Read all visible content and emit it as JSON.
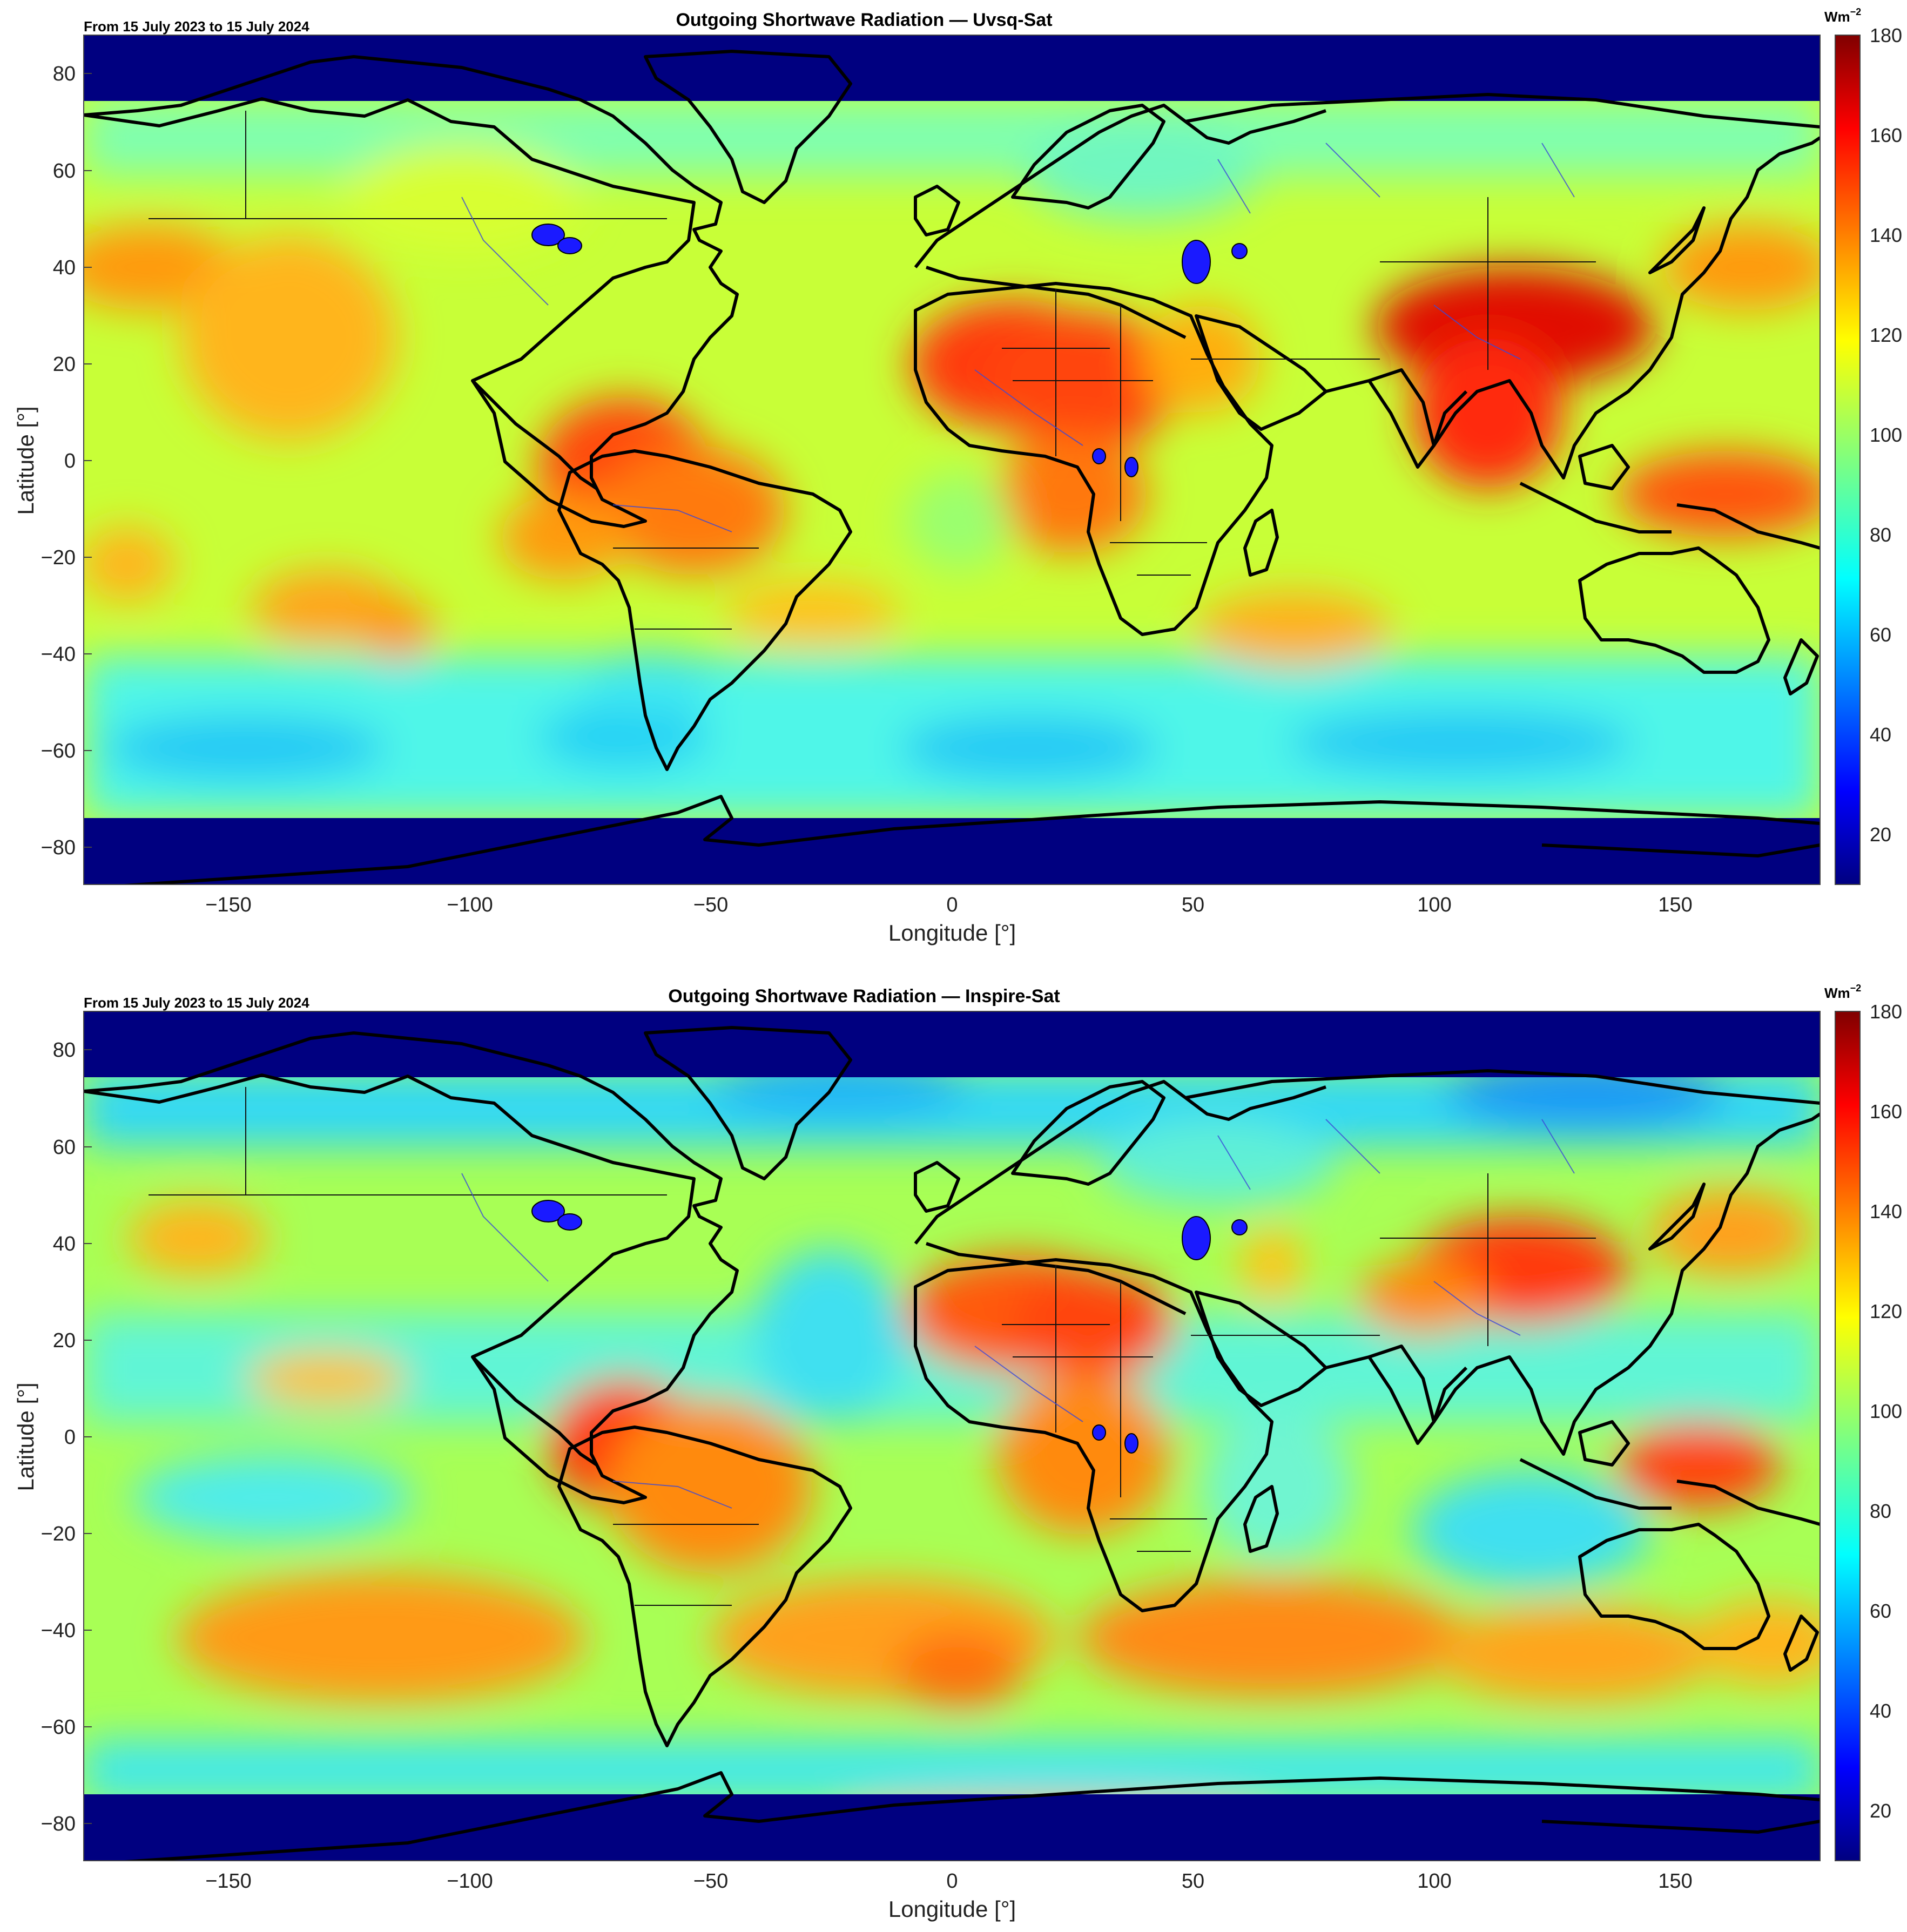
{
  "colormap": "jet",
  "colors": {
    "polar_mask": "#000080",
    "coastline": "#000000",
    "rivers": "#3b48d8",
    "lakes": "#1a1aff"
  },
  "colorbar": {
    "unit_base": "Wm",
    "unit_exp": "−2",
    "range": [
      10,
      180
    ],
    "ticks": [
      "20",
      "40",
      "60",
      "80",
      "100",
      "120",
      "140",
      "160",
      "180"
    ]
  },
  "axes": {
    "xlabel": "Longitude [°]",
    "ylabel": "Latitude [°]",
    "xlim": [
      -180,
      180
    ],
    "ylim": [
      -88,
      88
    ],
    "xticks": [
      "−150",
      "−100",
      "−50",
      "0",
      "50",
      "100",
      "150"
    ],
    "yticks": [
      "80",
      "60",
      "40",
      "20",
      "0",
      "−20",
      "−40",
      "−60",
      "−80"
    ],
    "valid_lat_range": [
      -75,
      75
    ]
  },
  "panels": [
    {
      "title": "Outgoing Shortwave Radiation — Uvsq-Sat",
      "period": "From 15 July 2023 to 15 July 2024"
    },
    {
      "title": "Outgoing Shortwave Radiation — Inspire-Sat",
      "period": "From 15 July 2023 to 15 July 2024"
    }
  ]
}
